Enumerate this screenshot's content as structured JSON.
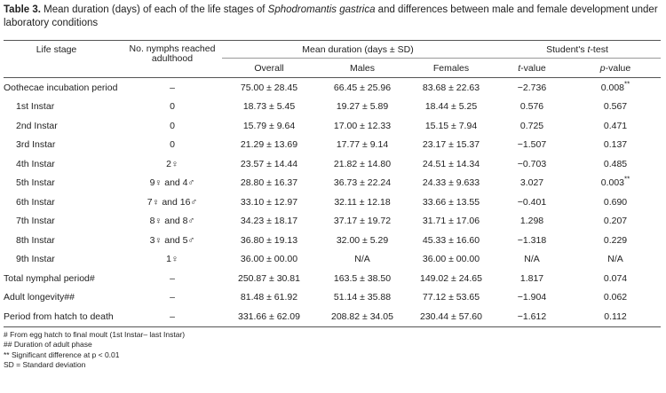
{
  "caption": {
    "label": "Table 3.",
    "text_before": " Mean duration (days) of each of the life stages of ",
    "species": "Sphodromantis gastrica",
    "text_after": " and differences between male and female development under laboratory conditions"
  },
  "headers": {
    "life_stage": "Life stage",
    "nymphs": "No. nymphs reached adulthood",
    "mean_duration": "Mean duration (days ± SD)",
    "overall": "Overall",
    "males": "Males",
    "females": "Females",
    "ttest_prefix": "Student's ",
    "ttest_t": "t",
    "ttest_suffix": "-test",
    "tvalue_t": "t",
    "tvalue_suffix": "-value",
    "pvalue_p": "p",
    "pvalue_suffix": "-value"
  },
  "rows": [
    {
      "stage": "Oothecae incubation period",
      "nymphs": "–",
      "overall": "75.00 ± 28.45",
      "males": "66.45 ± 25.96",
      "females": "83.68 ± 22.63",
      "t": "−2.736",
      "p": "0.008",
      "p_mark": "**"
    },
    {
      "stage": "1st Instar",
      "nymphs": "0",
      "overall": "18.73 ± 5.45",
      "males": "19.27 ± 5.89",
      "females": "18.44 ± 5.25",
      "t": "0.576",
      "p": "0.567",
      "p_mark": ""
    },
    {
      "stage": "2nd Instar",
      "nymphs": "0",
      "overall": "15.79 ± 9.64",
      "males": "17.00 ± 12.33",
      "females": "15.15 ± 7.94",
      "t": "0.725",
      "p": "0.471",
      "p_mark": ""
    },
    {
      "stage": "3rd Instar",
      "nymphs": "0",
      "overall": "21.29 ± 13.69",
      "males": "17.77 ± 9.14",
      "females": "23.17 ± 15.37",
      "t": "−1.507",
      "p": "0.137",
      "p_mark": ""
    },
    {
      "stage": "4th Instar",
      "nymphs": "2♀",
      "overall": "23.57 ± 14.44",
      "males": "21.82 ± 14.80",
      "females": "24.51 ± 14.34",
      "t": "−0.703",
      "p": "0.485",
      "p_mark": ""
    },
    {
      "stage": "5th Instar",
      "nymphs": "9♀ and 4♂",
      "overall": "28.80 ± 16.37",
      "males": "36.73 ± 22.24",
      "females": "24.33 ± 9.633",
      "t": "3.027",
      "p": "0.003",
      "p_mark": "**"
    },
    {
      "stage": "6th Instar",
      "nymphs": "7♀ and 16♂",
      "overall": "33.10 ± 12.97",
      "males": "32.11 ± 12.18",
      "females": "33.66 ± 13.55",
      "t": "−0.401",
      "p": "0.690",
      "p_mark": ""
    },
    {
      "stage": "7th Instar",
      "nymphs": "8♀ and 8♂",
      "overall": "34.23 ± 18.17",
      "males": "37.17 ± 19.72",
      "females": "31.71 ± 17.06",
      "t": "1.298",
      "p": "0.207",
      "p_mark": ""
    },
    {
      "stage": "8th Instar",
      "nymphs": "3♀ and 5♂",
      "overall": "36.80 ± 19.13",
      "males": "32.00 ± 5.29",
      "females": "45.33 ± 16.60",
      "t": "−1.318",
      "p": "0.229",
      "p_mark": ""
    },
    {
      "stage": "9th Instar",
      "nymphs": "1♀",
      "overall": "36.00 ± 00.00",
      "males": "N/A",
      "females": "36.00 ± 00.00",
      "t": "N/A",
      "p": "N/A",
      "p_mark": ""
    },
    {
      "stage": "Total nymphal period#",
      "nymphs": "–",
      "overall": "250.87 ± 30.81",
      "males": "163.5 ± 38.50",
      "females": "149.02 ± 24.65",
      "t": "1.817",
      "p": "0.074",
      "p_mark": ""
    },
    {
      "stage": "Adult longevity##",
      "nymphs": "–",
      "overall": "81.48 ± 61.92",
      "males": "51.14 ± 35.88",
      "females": "77.12 ± 53.65",
      "t": "−1.904",
      "p": "0.062",
      "p_mark": ""
    },
    {
      "stage": "Period from hatch to death",
      "nymphs": "–",
      "overall": "331.66 ± 62.09",
      "males": "208.82 ± 34.05",
      "females": "230.44 ± 57.60",
      "t": "−1.612",
      "p": "0.112",
      "p_mark": ""
    }
  ],
  "footnotes": [
    "# From egg hatch to final moult (1st Instar– last Instar)",
    "## Duration of adult phase",
    "** Significant difference at p < 0.01",
    "SD = Standard deviation"
  ]
}
